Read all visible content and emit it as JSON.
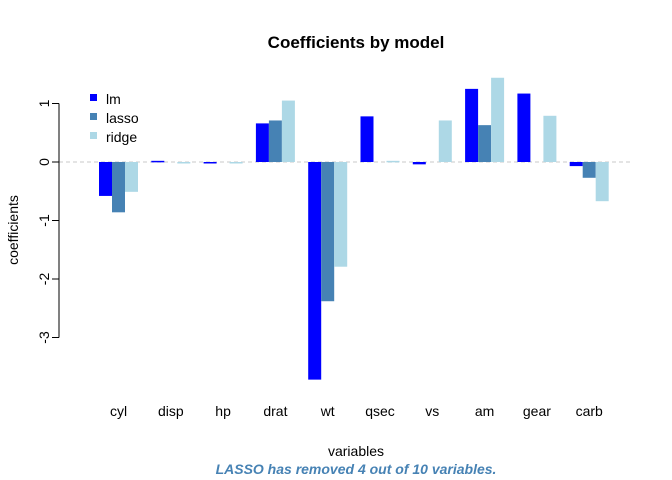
{
  "chart_data": {
    "type": "bar",
    "title": "Coefficients by model",
    "xlabel": "variables",
    "ylabel": "coefficients",
    "subtitle": "LASSO has removed 4 out of 10 variables.",
    "categories": [
      "cyl",
      "disp",
      "hp",
      "drat",
      "wt",
      "qsec",
      "vs",
      "am",
      "gear",
      "carb"
    ],
    "series": [
      {
        "name": "lm",
        "color": "#0000FF",
        "values": [
          -0.58,
          0.02,
          -0.02,
          0.66,
          -3.72,
          0.78,
          -0.04,
          1.25,
          1.17,
          -0.07
        ]
      },
      {
        "name": "lasso",
        "color": "#4682B4",
        "values": [
          -0.86,
          0.0,
          0.0,
          0.71,
          -2.38,
          0.0,
          0.0,
          0.63,
          0.0,
          -0.27
        ]
      },
      {
        "name": "ridge",
        "color": "#ADD8E6",
        "values": [
          -0.51,
          -0.01,
          -0.01,
          1.05,
          -1.79,
          0.02,
          0.71,
          1.44,
          0.79,
          -0.67
        ]
      }
    ],
    "ylim": [
      -3.8,
      1.55
    ],
    "yticks": [
      1,
      0,
      -1,
      -2,
      -3
    ],
    "zero_line": {
      "style": "dashed",
      "color": "#d3d3d3"
    },
    "legend": "top-left",
    "grid": false,
    "subtitle_color": "#4682B4"
  }
}
